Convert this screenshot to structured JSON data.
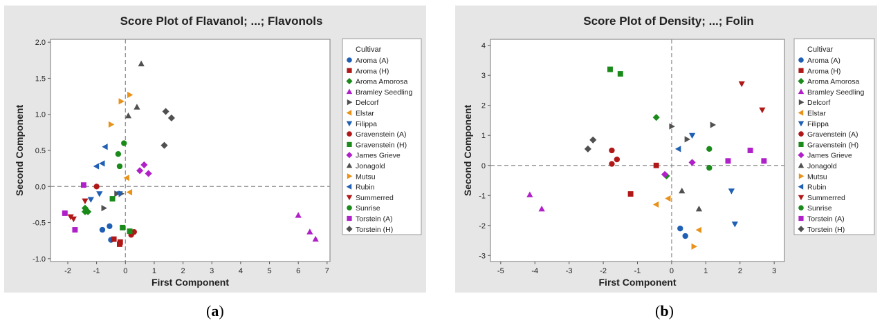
{
  "legend_title": "Cultivar",
  "cultivars": [
    {
      "name": "Aroma (A)",
      "color": "#1f5fb4",
      "marker": "circle"
    },
    {
      "name": "Aroma (H)",
      "color": "#b01818",
      "marker": "square"
    },
    {
      "name": "Aroma Amorosa",
      "color": "#1a8a1a",
      "marker": "diamond"
    },
    {
      "name": "Bramley Seedling",
      "color": "#b020c8",
      "marker": "triangle-up"
    },
    {
      "name": "Delcorf",
      "color": "#505050",
      "marker": "triangle-right"
    },
    {
      "name": "Elstar",
      "color": "#e8921a",
      "marker": "triangle-left"
    },
    {
      "name": "Filippa",
      "color": "#1f5fb4",
      "marker": "triangle-down"
    },
    {
      "name": "Gravenstein (A)",
      "color": "#b01818",
      "marker": "circle"
    },
    {
      "name": "Gravenstein (H)",
      "color": "#1a8a1a",
      "marker": "square"
    },
    {
      "name": "James Grieve",
      "color": "#b020c8",
      "marker": "diamond"
    },
    {
      "name": "Jonagold",
      "color": "#505050",
      "marker": "triangle-up"
    },
    {
      "name": "Mutsu",
      "color": "#e8921a",
      "marker": "triangle-right"
    },
    {
      "name": "Rubin",
      "color": "#1f5fb4",
      "marker": "triangle-left"
    },
    {
      "name": "Summerred",
      "color": "#b01818",
      "marker": "triangle-down"
    },
    {
      "name": "Sunrise",
      "color": "#1a8a1a",
      "marker": "circle"
    },
    {
      "name": "Torstein (A)",
      "color": "#b020c8",
      "marker": "square"
    },
    {
      "name": "Torstein (H)",
      "color": "#505050",
      "marker": "diamond"
    }
  ],
  "captions": {
    "a": "a",
    "b": "b"
  },
  "chart_data": [
    {
      "type": "scatter",
      "title": "Score Plot of Flavanol; ...; Flavonols",
      "xlabel": "First Component",
      "ylabel": "Second Component",
      "xlim": [
        -2.6,
        7.1
      ],
      "ylim": [
        -1.04,
        2.04
      ],
      "xticks": [
        -2,
        -1,
        0,
        1,
        2,
        3,
        4,
        5,
        6,
        7
      ],
      "yticks": [
        -1.0,
        -0.5,
        0.0,
        0.5,
        1.0,
        1.5,
        2.0
      ],
      "ytick_labels": [
        "-1.0",
        "-0.5",
        "0.0",
        "0.5",
        "1.0",
        "1.5",
        "2.0"
      ],
      "reference_lines": {
        "x": 0,
        "y": 0
      },
      "series": [
        {
          "name": "Aroma (A)",
          "points": [
            [
              -0.8,
              -0.6
            ],
            [
              -0.55,
              -0.55
            ],
            [
              -0.5,
              -0.74
            ]
          ]
        },
        {
          "name": "Aroma (H)",
          "points": [
            [
              -0.4,
              -0.73
            ],
            [
              -0.2,
              -0.8
            ],
            [
              -0.18,
              -0.77
            ]
          ]
        },
        {
          "name": "Aroma Amorosa",
          "points": [
            [
              -1.4,
              -0.3
            ],
            [
              -1.3,
              -0.35
            ],
            [
              -1.4,
              -0.35
            ]
          ]
        },
        {
          "name": "Bramley Seedling",
          "points": [
            [
              6.0,
              -0.4
            ],
            [
              6.4,
              -0.63
            ],
            [
              6.6,
              -0.73
            ]
          ]
        },
        {
          "name": "Delcorf",
          "points": [
            [
              -0.75,
              -0.3
            ],
            [
              -0.3,
              -0.1
            ],
            [
              -0.15,
              -0.1
            ]
          ]
        },
        {
          "name": "Elstar",
          "points": [
            [
              0.15,
              -0.08
            ],
            [
              0.05,
              0.12
            ]
          ]
        },
        {
          "name": "Filippa",
          "points": [
            [
              -1.2,
              -0.18
            ],
            [
              -0.9,
              -0.1
            ],
            [
              -0.2,
              -0.1
            ]
          ]
        },
        {
          "name": "Gravenstein (A)",
          "points": [
            [
              -1.0,
              0.0
            ],
            [
              0.2,
              -0.67
            ],
            [
              0.3,
              -0.63
            ]
          ]
        },
        {
          "name": "Gravenstein (H)",
          "points": [
            [
              -0.45,
              -0.17
            ],
            [
              -0.1,
              -0.57
            ],
            [
              0.15,
              -0.62
            ]
          ]
        },
        {
          "name": "James Grieve",
          "points": [
            [
              0.5,
              0.22
            ],
            [
              0.65,
              0.3
            ],
            [
              0.8,
              0.18
            ]
          ]
        },
        {
          "name": "Jonagold",
          "points": [
            [
              0.55,
              1.7
            ],
            [
              0.4,
              1.1
            ],
            [
              0.1,
              0.98
            ]
          ]
        },
        {
          "name": "Mutsu",
          "points": [
            [
              -0.5,
              0.86
            ],
            [
              -0.15,
              1.18
            ],
            [
              0.15,
              1.27
            ]
          ]
        },
        {
          "name": "Rubin",
          "points": [
            [
              -1.0,
              0.28
            ],
            [
              -0.8,
              0.32
            ],
            [
              -0.7,
              0.55
            ]
          ]
        },
        {
          "name": "Summerred",
          "points": [
            [
              -1.9,
              -0.42
            ],
            [
              -1.8,
              -0.45
            ],
            [
              -1.4,
              -0.2
            ]
          ]
        },
        {
          "name": "Sunrise",
          "points": [
            [
              -0.25,
              0.45
            ],
            [
              -0.2,
              0.28
            ],
            [
              -0.05,
              0.6
            ]
          ]
        },
        {
          "name": "Torstein (A)",
          "points": [
            [
              -2.1,
              -0.37
            ],
            [
              -1.75,
              -0.6
            ],
            [
              -1.45,
              0.02
            ]
          ]
        },
        {
          "name": "Torstein (H)",
          "points": [
            [
              1.4,
              1.04
            ],
            [
              1.6,
              0.95
            ],
            [
              1.35,
              0.57
            ]
          ]
        }
      ]
    },
    {
      "type": "scatter",
      "title": "Score Plot of Density; ...; Folin",
      "xlabel": "First Component",
      "ylabel": "Second Component",
      "xlim": [
        -5.3,
        3.3
      ],
      "ylim": [
        -3.2,
        4.2
      ],
      "xticks": [
        -5,
        -4,
        -3,
        -2,
        -1,
        0,
        1,
        2,
        3
      ],
      "yticks": [
        -3,
        -2,
        -1,
        0,
        1,
        2,
        3,
        4
      ],
      "ytick_labels": [
        "-3",
        "-2",
        "-1",
        "0",
        "1",
        "2",
        "3",
        "4"
      ],
      "reference_lines": {
        "x": 0,
        "y": 0
      },
      "series": [
        {
          "name": "Aroma (A)",
          "points": [
            [
              0.25,
              -2.1
            ],
            [
              0.4,
              -2.35
            ]
          ]
        },
        {
          "name": "Aroma (H)",
          "points": [
            [
              -1.2,
              -0.95
            ],
            [
              -0.45,
              0.0
            ]
          ]
        },
        {
          "name": "Aroma Amorosa",
          "points": [
            [
              -0.45,
              1.6
            ],
            [
              -0.15,
              -0.35
            ]
          ]
        },
        {
          "name": "Bramley Seedling",
          "points": [
            [
              -4.15,
              -0.98
            ],
            [
              -3.8,
              -1.45
            ]
          ]
        },
        {
          "name": "Delcorf",
          "points": [
            [
              0.0,
              1.3
            ],
            [
              0.45,
              0.87
            ],
            [
              1.2,
              1.35
            ]
          ]
        },
        {
          "name": "Elstar",
          "points": [
            [
              -0.1,
              -1.1
            ],
            [
              -0.45,
              -1.3
            ],
            [
              0.8,
              -2.15
            ]
          ]
        },
        {
          "name": "Filippa",
          "points": [
            [
              0.6,
              1.0
            ],
            [
              1.75,
              -0.85
            ],
            [
              1.85,
              -1.95
            ]
          ]
        },
        {
          "name": "Gravenstein (A)",
          "points": [
            [
              -1.75,
              0.5
            ],
            [
              -1.6,
              0.2
            ],
            [
              -1.75,
              0.05
            ]
          ]
        },
        {
          "name": "Gravenstein (H)",
          "points": [
            [
              -1.8,
              3.2
            ],
            [
              -1.5,
              3.05
            ]
          ]
        },
        {
          "name": "James Grieve",
          "points": [
            [
              -0.2,
              -0.3
            ],
            [
              0.6,
              0.1
            ]
          ]
        },
        {
          "name": "Jonagold",
          "points": [
            [
              0.3,
              -0.85
            ],
            [
              0.8,
              -1.45
            ]
          ]
        },
        {
          "name": "Mutsu",
          "points": [
            [
              0.65,
              -2.7
            ]
          ]
        },
        {
          "name": "Rubin",
          "points": [
            [
              0.2,
              0.55
            ]
          ]
        },
        {
          "name": "Summerred",
          "points": [
            [
              2.05,
              2.72
            ],
            [
              2.65,
              1.85
            ]
          ]
        },
        {
          "name": "Sunrise",
          "points": [
            [
              1.1,
              0.55
            ],
            [
              1.1,
              -0.08
            ]
          ]
        },
        {
          "name": "Torstein (A)",
          "points": [
            [
              1.65,
              0.15
            ],
            [
              2.3,
              0.5
            ],
            [
              2.7,
              0.15
            ]
          ]
        },
        {
          "name": "Torstein (H)",
          "points": [
            [
              -2.3,
              0.85
            ],
            [
              -2.45,
              0.55
            ]
          ]
        }
      ]
    }
  ]
}
